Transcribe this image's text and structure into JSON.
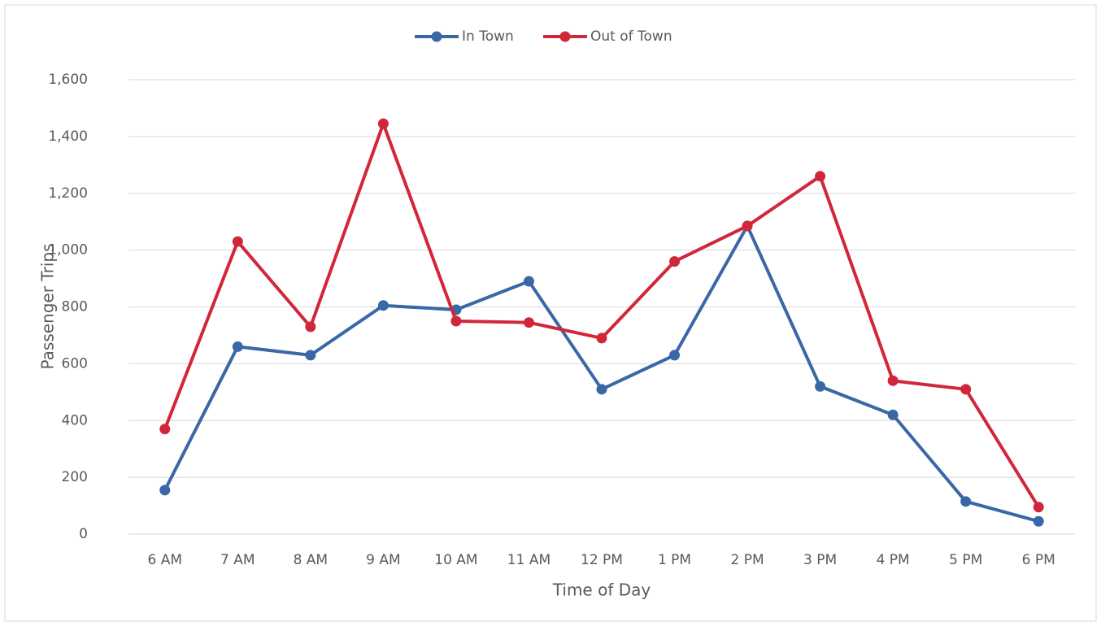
{
  "chart_data": {
    "type": "line",
    "xlabel": "Time of Day",
    "ylabel": "Passenger Trips",
    "categories": [
      "6 AM",
      "7 AM",
      "8 AM",
      "9 AM",
      "10 AM",
      "11 AM",
      "12 PM",
      "1 PM",
      "2 PM",
      "3 PM",
      "4 PM",
      "5 PM",
      "6 PM"
    ],
    "series": [
      {
        "name": "In Town",
        "color": "#3a67a6",
        "values": [
          155,
          660,
          630,
          805,
          790,
          890,
          510,
          630,
          1085,
          520,
          420,
          115,
          45
        ]
      },
      {
        "name": "Out of Town",
        "color": "#d2263a",
        "values": [
          370,
          1030,
          730,
          1445,
          750,
          745,
          690,
          960,
          1085,
          1260,
          540,
          510,
          95
        ]
      }
    ],
    "ylim": [
      0,
      1600
    ],
    "yticks": [
      0,
      200,
      400,
      600,
      800,
      {
        "value": 1000,
        "label": "1,000"
      },
      {
        "value": 1200,
        "label": "1,200"
      },
      {
        "value": 1400,
        "label": "1,400"
      },
      {
        "value": 1600,
        "label": "1,600"
      }
    ],
    "grid": true,
    "legend": "top"
  }
}
